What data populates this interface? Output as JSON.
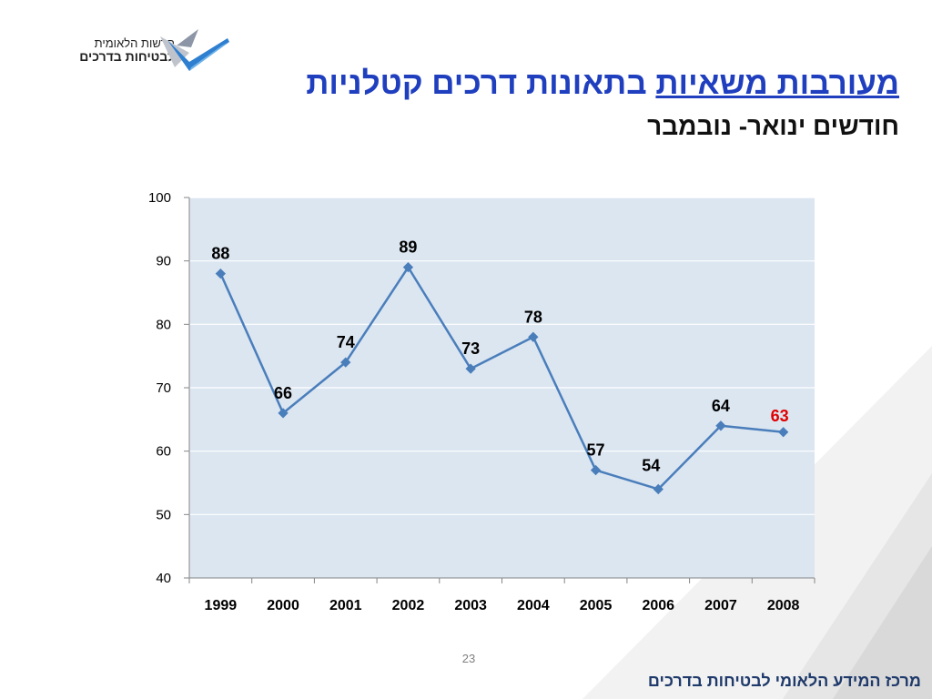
{
  "logo": {
    "line1": "הרשות הלאומית",
    "line2": "לבטיחות בדרכים"
  },
  "title": {
    "underlined": "מעורבות משאיות",
    "rest": "בתאונות דרכים קטלניות"
  },
  "subtitle": "חודשים ינואר- נובמבר",
  "page_number": "23",
  "footer": "מרכז המידע הלאומי לבטיחות בדרכים",
  "colors": {
    "title": "#1f3fbf",
    "line": "#4a7ebb",
    "plot_bg": "#dce6f1",
    "highlight": "#e00000",
    "footer": "#1f3a6b"
  },
  "chart_data": {
    "type": "line",
    "categories": [
      "1999",
      "2000",
      "2001",
      "2002",
      "2003",
      "2004",
      "2005",
      "2006",
      "2007",
      "2008"
    ],
    "values": [
      88,
      66,
      74,
      89,
      73,
      78,
      57,
      54,
      64,
      63
    ],
    "data_labels": [
      "88",
      "66",
      "74",
      "89",
      "73",
      "78",
      "57",
      "54",
      "64",
      "63"
    ],
    "highlight_index": 9,
    "ylim": [
      40,
      100
    ],
    "yticks": [
      "40",
      "50",
      "60",
      "70",
      "80",
      "90",
      "100"
    ],
    "grid": true,
    "legend": "none"
  }
}
